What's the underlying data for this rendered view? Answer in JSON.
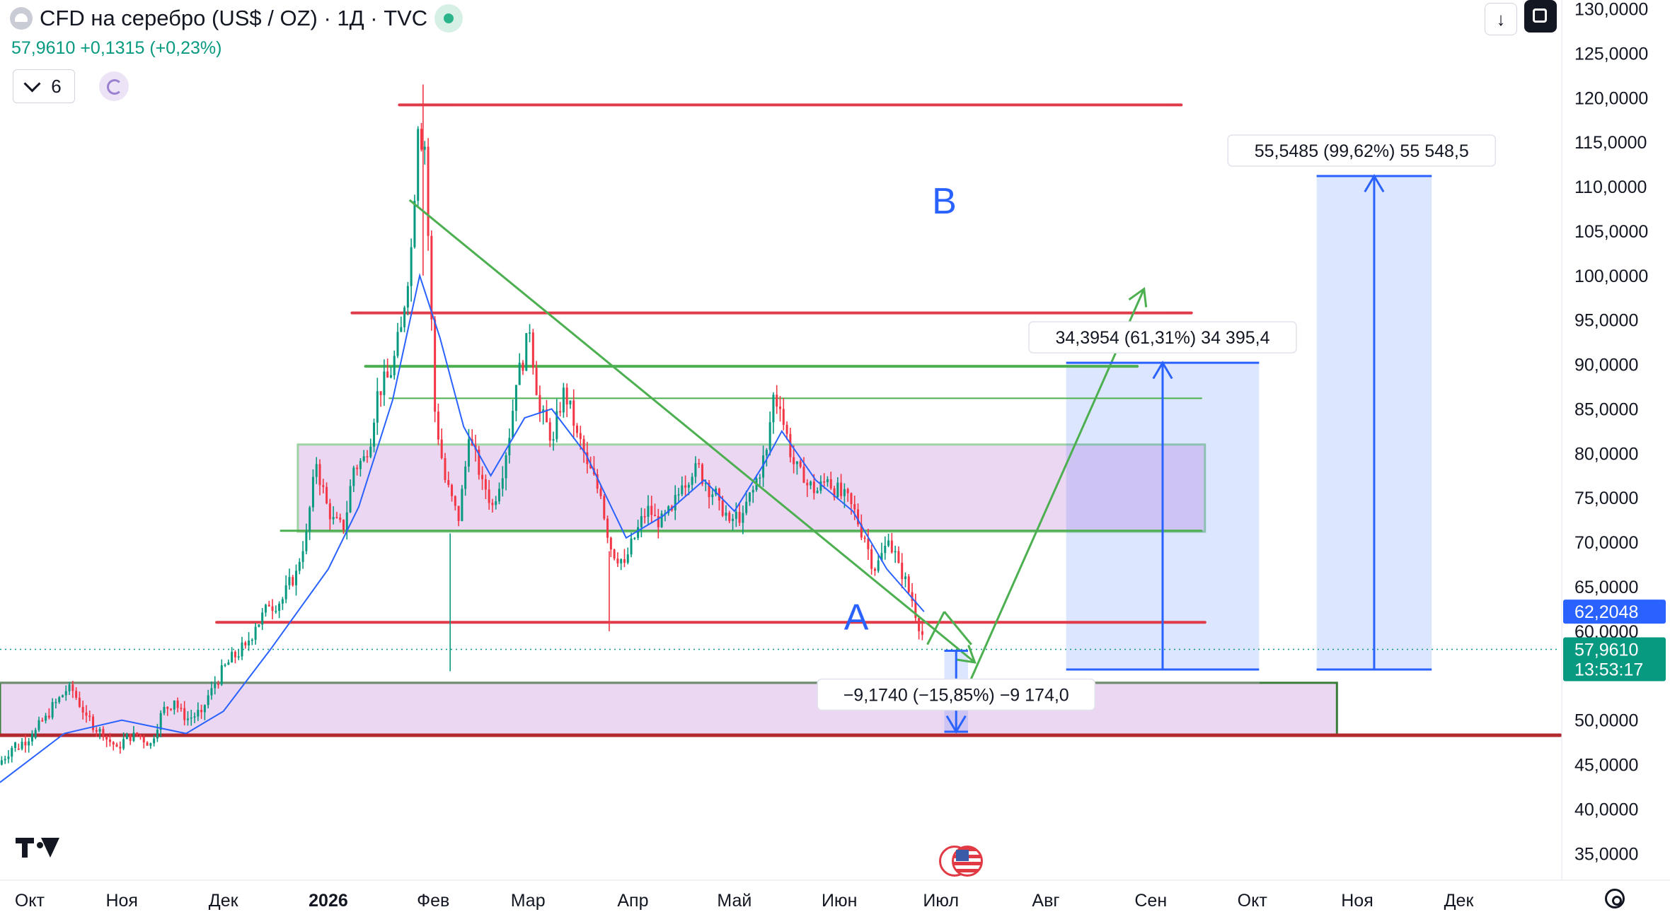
{
  "header": {
    "title": "CFD на серебро (US$ / OZ) · 1Д · TVC",
    "quote_price": "57,9610",
    "quote_change": "+0,1315 (+0,23%)",
    "indicator_count": "6",
    "download_icon": "↓"
  },
  "icons": [
    "symbol-icon",
    "market-status-dot-icon",
    "chevron-down-icon",
    "refresh-icon",
    "download-icon",
    "fullscreen-icon",
    "tradingview-logo-icon",
    "us-flag-events-icon",
    "settings-icon"
  ],
  "colors": {
    "candle_up": "#089981",
    "candle_down": "#f23645",
    "ma_line": "#2962ff",
    "level_red": "#e03b48",
    "level_green": "#4caf50",
    "zone_purple": "#dcb6e8",
    "measure_blue": "#2962ff",
    "label_blue": "#2962ff"
  },
  "chart_data": {
    "type": "candlestick",
    "symbol": "CFD на серебро (US$ / OZ)",
    "timeframe": "1Д",
    "ylim": [
      32000,
      131000
    ],
    "x_range": [
      "2025-09-26",
      "2026-12-31"
    ],
    "y_ticks": [
      {
        "value": 130000,
        "label": "130,0000"
      },
      {
        "value": 125000,
        "label": "125,0000"
      },
      {
        "value": 120000,
        "label": "120,0000"
      },
      {
        "value": 115000,
        "label": "115,0000"
      },
      {
        "value": 110000,
        "label": "110,0000"
      },
      {
        "value": 105000,
        "label": "105,0000"
      },
      {
        "value": 100000,
        "label": "100,0000"
      },
      {
        "value": 95000,
        "label": "95,0000"
      },
      {
        "value": 90000,
        "label": "90,0000"
      },
      {
        "value": 85000,
        "label": "85,0000"
      },
      {
        "value": 80000,
        "label": "80,0000"
      },
      {
        "value": 75000,
        "label": "75,0000"
      },
      {
        "value": 70000,
        "label": "70,0000"
      },
      {
        "value": 65000,
        "label": "65,0000"
      },
      {
        "value": 60000,
        "label": "60,0000"
      },
      {
        "value": 50000,
        "label": "50,0000"
      },
      {
        "value": 45000,
        "label": "45,0000"
      },
      {
        "value": 40000,
        "label": "40,0000"
      },
      {
        "value": 35000,
        "label": "35,0000"
      }
    ],
    "x_ticks": [
      {
        "date": "2025-10-01",
        "label": "Окт",
        "bold": false
      },
      {
        "date": "2025-11-01",
        "label": "Ноя",
        "bold": false
      },
      {
        "date": "2025-12-01",
        "label": "Дек",
        "bold": false
      },
      {
        "date": "2026-01-01",
        "label": "2026",
        "bold": true
      },
      {
        "date": "2026-02-01",
        "label": "Фев",
        "bold": false
      },
      {
        "date": "2026-03-01",
        "label": "Мар",
        "bold": false
      },
      {
        "date": "2026-04-01",
        "label": "Апр",
        "bold": false
      },
      {
        "date": "2026-05-01",
        "label": "Май",
        "bold": false
      },
      {
        "date": "2026-06-01",
        "label": "Июн",
        "bold": false
      },
      {
        "date": "2026-07-01",
        "label": "Июл",
        "bold": false
      },
      {
        "date": "2026-08-01",
        "label": "Авг",
        "bold": false
      },
      {
        "date": "2026-09-01",
        "label": "Сен",
        "bold": false
      },
      {
        "date": "2026-10-01",
        "label": "Окт",
        "bold": false
      },
      {
        "date": "2026-11-01",
        "label": "Ноя",
        "bold": false
      },
      {
        "date": "2026-12-01",
        "label": "Дек",
        "bold": false
      }
    ],
    "series": [
      {
        "type": "candlestick",
        "points": [
          [
            "2025-09-26",
            45000,
            47500
          ],
          [
            "2025-10-01",
            46800,
            48500
          ],
          [
            "2025-10-06",
            48000,
            50500
          ],
          [
            "2025-10-10",
            50500,
            52800
          ],
          [
            "2025-10-15",
            52800,
            54000
          ],
          [
            "2025-10-17",
            54000,
            50500
          ],
          [
            "2025-10-22",
            50500,
            48200
          ],
          [
            "2025-10-27",
            48200,
            47000
          ],
          [
            "2025-10-31",
            47000,
            48600
          ],
          [
            "2025-11-05",
            48600,
            47400
          ],
          [
            "2025-11-10",
            47400,
            50800
          ],
          [
            "2025-11-13",
            50800,
            52200
          ],
          [
            "2025-11-17",
            52200,
            50000
          ],
          [
            "2025-11-20",
            50000,
            50900
          ],
          [
            "2025-11-25",
            50900,
            53600
          ],
          [
            "2025-11-28",
            53600,
            56500
          ],
          [
            "2025-12-03",
            56500,
            58400
          ],
          [
            "2025-12-08",
            58400,
            60500
          ],
          [
            "2025-12-11",
            60500,
            62800
          ],
          [
            "2025-12-15",
            62800,
            63600
          ],
          [
            "2025-12-19",
            63600,
            66800
          ],
          [
            "2025-12-23",
            66800,
            71200
          ],
          [
            "2025-12-26",
            71200,
            78800
          ],
          [
            "2025-12-29",
            78800,
            72600
          ],
          [
            "2026-01-02",
            72600,
            71400
          ],
          [
            "2026-01-06",
            71400,
            78400
          ],
          [
            "2026-01-09",
            78400,
            79600
          ],
          [
            "2026-01-13",
            79600,
            87000
          ],
          [
            "2026-01-16",
            87000,
            88800
          ],
          [
            "2026-01-20",
            88800,
            94200
          ],
          [
            "2026-01-23",
            94200,
            103200
          ],
          [
            "2026-01-26",
            103200,
            116500
          ],
          [
            "2026-01-28",
            116500,
            114500
          ],
          [
            "2026-01-30",
            114500,
            84700
          ],
          [
            "2026-02-02",
            84700,
            77000
          ],
          [
            "2026-02-05",
            77000,
            72400
          ],
          [
            "2026-02-09",
            72400,
            81600
          ],
          [
            "2026-02-12",
            81600,
            77100
          ],
          [
            "2026-02-16",
            77100,
            74200
          ],
          [
            "2026-02-19",
            74200,
            79800
          ],
          [
            "2026-02-23",
            79800,
            87700
          ],
          [
            "2026-02-26",
            87700,
            93600
          ],
          [
            "2026-03-02",
            93600,
            84600
          ],
          [
            "2026-03-05",
            84600,
            81600
          ],
          [
            "2026-03-09",
            81600,
            87400
          ],
          [
            "2026-03-12",
            87400,
            82300
          ],
          [
            "2026-03-16",
            82300,
            78800
          ],
          [
            "2026-03-19",
            78800,
            75200
          ],
          [
            "2026-03-23",
            75200,
            69200
          ],
          [
            "2026-03-26",
            69200,
            67700
          ],
          [
            "2026-03-30",
            67700,
            70500
          ],
          [
            "2026-04-02",
            70500,
            74100
          ],
          [
            "2026-04-06",
            74100,
            71700
          ],
          [
            "2026-04-09",
            71700,
            73600
          ],
          [
            "2026-04-13",
            73600,
            76400
          ],
          [
            "2026-04-16",
            76400,
            78900
          ],
          [
            "2026-04-20",
            78900,
            76700
          ],
          [
            "2026-04-23",
            76700,
            74700
          ],
          [
            "2026-04-27",
            74700,
            72400
          ],
          [
            "2026-04-30",
            72400,
            73300
          ],
          [
            "2026-05-04",
            73300,
            75900
          ],
          [
            "2026-05-07",
            75900,
            80400
          ],
          [
            "2026-05-11",
            80400,
            86600
          ],
          [
            "2026-05-13",
            86600,
            85000
          ],
          [
            "2026-05-15",
            85000,
            78800
          ],
          [
            "2026-05-19",
            78800,
            76700
          ],
          [
            "2026-05-22",
            76700,
            75800
          ],
          [
            "2026-05-26",
            75800,
            77100
          ],
          [
            "2026-05-29",
            77100,
            75200
          ],
          [
            "2026-06-02",
            75200,
            74300
          ],
          [
            "2026-06-05",
            74300,
            70400
          ],
          [
            "2026-06-09",
            70400,
            66800
          ],
          [
            "2026-06-12",
            66800,
            70200
          ],
          [
            "2026-06-16",
            70200,
            67700
          ],
          [
            "2026-06-19",
            67700,
            63400
          ],
          [
            "2026-06-23",
            63400,
            59600
          ],
          [
            "2026-06-26",
            59600,
            57900
          ]
        ]
      },
      {
        "type": "moving_average",
        "points": [
          [
            "2025-09-26",
            43000
          ],
          [
            "2025-10-15",
            48500
          ],
          [
            "2025-11-01",
            50000
          ],
          [
            "2025-11-20",
            48500
          ],
          [
            "2025-12-01",
            51000
          ],
          [
            "2025-12-15",
            58000
          ],
          [
            "2026-01-01",
            67000
          ],
          [
            "2026-01-10",
            74000
          ],
          [
            "2026-01-20",
            86000
          ],
          [
            "2026-01-28",
            100000
          ],
          [
            "2026-02-03",
            93000
          ],
          [
            "2026-02-10",
            83000
          ],
          [
            "2026-02-18",
            77500
          ],
          [
            "2026-02-28",
            84000
          ],
          [
            "2026-03-08",
            85000
          ],
          [
            "2026-03-18",
            80000
          ],
          [
            "2026-03-30",
            70500
          ],
          [
            "2026-04-10",
            73000
          ],
          [
            "2026-04-22",
            77000
          ],
          [
            "2026-05-01",
            73500
          ],
          [
            "2026-05-10",
            79000
          ],
          [
            "2026-05-15",
            82500
          ],
          [
            "2026-05-25",
            77000
          ],
          [
            "2026-06-05",
            73500
          ],
          [
            "2026-06-15",
            67000
          ],
          [
            "2026-06-26",
            62205
          ]
        ]
      }
    ],
    "horizontal_levels": [
      {
        "color": "red",
        "value": 119200,
        "from": "2026-01-22",
        "to": "2026-09-10",
        "width": 4
      },
      {
        "color": "red",
        "value": 95800,
        "from": "2026-01-08",
        "to": "2026-09-13",
        "width": 4
      },
      {
        "color": "green",
        "value": 89800,
        "from": "2026-01-12",
        "to": "2026-08-28",
        "width": 4
      },
      {
        "color": "green",
        "value": 86200,
        "from": "2026-01-19",
        "to": "2026-09-16",
        "width": 2
      },
      {
        "color": "green",
        "value": 71300,
        "from": "2025-12-18",
        "to": "2026-09-16",
        "width": 3
      },
      {
        "color": "red",
        "value": 61000,
        "from": "2025-11-29",
        "to": "2026-09-17",
        "width": 4
      },
      {
        "color": "darkred",
        "value": 48300,
        "from": "2025-09-26",
        "to": "2026-12-31",
        "width": 5
      },
      {
        "color": "gray",
        "value": 54200,
        "from": "2025-09-26",
        "to": "2026-10-03",
        "width": 2
      }
    ],
    "zones": [
      {
        "value_from": 71200,
        "value_to": 81000,
        "from": "2025-12-23",
        "to": "2026-09-17"
      },
      {
        "value_from": 48300,
        "value_to": 54200,
        "from": "2025-09-26",
        "to": "2026-10-26"
      }
    ],
    "trendlines": [
      {
        "from": [
          "2026-01-25",
          108500
        ],
        "to": [
          "2026-07-11",
          56500
        ]
      },
      {
        "from": [
          "2026-06-27",
          58500
        ],
        "to": [
          "2026-07-02",
          62200
        ]
      },
      {
        "from": [
          "2026-07-02",
          62200
        ],
        "to": [
          "2026-07-10",
          58500
        ]
      },
      {
        "from": [
          "2026-07-08",
          53000
        ],
        "to": [
          "2026-08-30",
          98500
        ]
      }
    ],
    "measures": [
      {
        "label": "55,5485 (99,62%) 55 548,5",
        "start": 55700,
        "end": 111200,
        "from": "2026-10-20",
        "to": "2026-11-23",
        "label_anchor": "right"
      },
      {
        "label": "34,3954 (61,31%) 34 395,4",
        "start": 55700,
        "end": 90200,
        "from": "2026-08-07",
        "to": "2026-10-03",
        "label_anchor": "center"
      },
      {
        "label": "−9,1740 (−15,85%) −9 174,0",
        "start": 57800,
        "end": 48700,
        "from": "2026-07-02",
        "to": "2026-07-09",
        "label_anchor": "center"
      }
    ],
    "wave_labels": [
      {
        "text": "B",
        "date": "2026-07-02",
        "value": 107000
      },
      {
        "text": "A",
        "date": "2026-06-06",
        "value": 60200
      }
    ],
    "price_labels": [
      {
        "text": "62,2048",
        "value": 62205,
        "color": "#2962ff"
      },
      {
        "text": "57,9610",
        "text2": "13:53:17",
        "value": 57961,
        "color": "#089981"
      }
    ],
    "last_price": 57961
  }
}
